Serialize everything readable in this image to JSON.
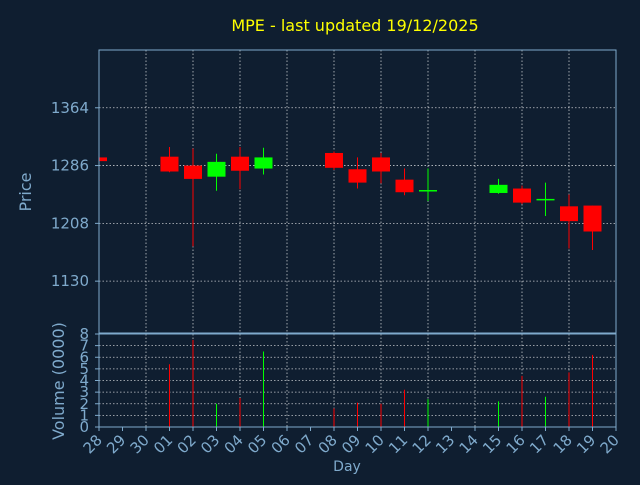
{
  "title": "MPE - last updated 19/12/2025",
  "colors": {
    "background": "#0f1e30",
    "title": "#ffff00",
    "text": "#7faacc",
    "up": "#00ff00",
    "down": "#ff0000",
    "grid": "#ffffff",
    "axis": "#7faacc"
  },
  "chart_data": [
    {
      "type": "candlestick",
      "ylabel": "Price",
      "yticks": [
        1130,
        1208,
        1286,
        1364
      ],
      "ylim": [
        1060,
        1442
      ],
      "grid": true,
      "x_tick_labels": [
        "28",
        "29",
        "30",
        "01",
        "02",
        "03",
        "04",
        "05",
        "06",
        "07",
        "08",
        "09",
        "10",
        "11",
        "12",
        "13",
        "14",
        "15",
        "16",
        "17",
        "18",
        "19",
        "20"
      ],
      "candles": [
        {
          "day": "28",
          "open": 1297,
          "high": 1297,
          "low": 1292,
          "close": 1292
        },
        {
          "day": "01",
          "open": 1298,
          "high": 1311,
          "low": 1277,
          "close": 1278
        },
        {
          "day": "02",
          "open": 1286,
          "high": 1309,
          "low": 1177,
          "close": 1268
        },
        {
          "day": "03",
          "open": 1271,
          "high": 1302,
          "low": 1252,
          "close": 1291
        },
        {
          "day": "04",
          "open": 1298,
          "high": 1311,
          "low": 1254,
          "close": 1279
        },
        {
          "day": "05",
          "open": 1282,
          "high": 1310,
          "low": 1274,
          "close": 1297
        },
        {
          "day": "08",
          "open": 1303,
          "high": 1305,
          "low": 1280,
          "close": 1283
        },
        {
          "day": "09",
          "open": 1281,
          "high": 1297,
          "low": 1255,
          "close": 1263
        },
        {
          "day": "10",
          "open": 1297,
          "high": 1303,
          "low": 1262,
          "close": 1278
        },
        {
          "day": "11",
          "open": 1267,
          "high": 1282,
          "low": 1246,
          "close": 1250
        },
        {
          "day": "12",
          "open": 1252,
          "high": 1282,
          "low": 1238,
          "close": 1253
        },
        {
          "day": "15",
          "open": 1249,
          "high": 1268,
          "low": 1248,
          "close": 1260
        },
        {
          "day": "16",
          "open": 1255,
          "high": 1259,
          "low": 1234,
          "close": 1236
        },
        {
          "day": "17",
          "open": 1239,
          "high": 1263,
          "low": 1218,
          "close": 1241
        },
        {
          "day": "18",
          "open": 1231,
          "high": 1247,
          "low": 1174,
          "close": 1211
        },
        {
          "day": "19",
          "open": 1232,
          "high": 1232,
          "low": 1172,
          "close": 1197
        }
      ]
    },
    {
      "type": "bar",
      "ylabel": "Volume (0000)",
      "xlabel": "Day",
      "yticks": [
        0,
        1,
        2,
        3,
        4,
        5,
        6,
        7,
        8
      ],
      "ylim": [
        0,
        8
      ],
      "grid": true,
      "bars": [
        {
          "day": "28",
          "value": 0.1,
          "direction": "down"
        },
        {
          "day": "01",
          "value": 5.4,
          "direction": "down"
        },
        {
          "day": "02",
          "value": 7.5,
          "direction": "down"
        },
        {
          "day": "03",
          "value": 2.0,
          "direction": "up"
        },
        {
          "day": "04",
          "value": 2.5,
          "direction": "down"
        },
        {
          "day": "05",
          "value": 6.5,
          "direction": "up"
        },
        {
          "day": "08",
          "value": 1.6,
          "direction": "down"
        },
        {
          "day": "09",
          "value": 2.1,
          "direction": "down"
        },
        {
          "day": "10",
          "value": 2.0,
          "direction": "down"
        },
        {
          "day": "11",
          "value": 3.2,
          "direction": "down"
        },
        {
          "day": "12",
          "value": 2.4,
          "direction": "up"
        },
        {
          "day": "15",
          "value": 2.2,
          "direction": "up"
        },
        {
          "day": "16",
          "value": 4.4,
          "direction": "down"
        },
        {
          "day": "17",
          "value": 2.6,
          "direction": "up"
        },
        {
          "day": "18",
          "value": 4.7,
          "direction": "down"
        },
        {
          "day": "19",
          "value": 6.2,
          "direction": "down"
        }
      ]
    }
  ]
}
